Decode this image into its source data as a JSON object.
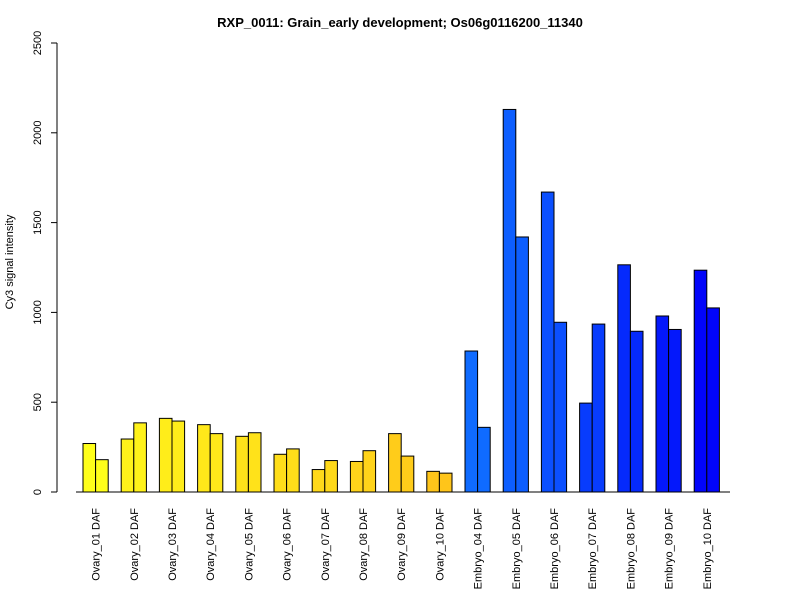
{
  "chart_data": {
    "type": "bar",
    "title": "RXP_0011: Grain_early development; Os06g0116200_11340",
    "ylabel": "Cy3 signal intensity",
    "xlabel": "",
    "ylim": [
      0,
      2500
    ],
    "yticks": [
      0,
      500,
      1000,
      1500,
      2000,
      2500
    ],
    "grid": false,
    "legend": "none",
    "categories": [
      "Ovary_01 DAF",
      "Ovary_02 DAF",
      "Ovary_03 DAF",
      "Ovary_04 DAF",
      "Ovary_05 DAF",
      "Ovary_06 DAF",
      "Ovary_07 DAF",
      "Ovary_08 DAF",
      "Ovary_09 DAF",
      "Ovary_10 DAF",
      "Embryo_04 DAF",
      "Embryo_05 DAF",
      "Embryo_06 DAF",
      "Embryo_07 DAF",
      "Embryo_08 DAF",
      "Embryo_09 DAF",
      "Embryo_10 DAF"
    ],
    "series": [
      {
        "values": [
          270,
          295,
          410,
          375,
          310,
          210,
          125,
          170,
          325,
          115,
          785,
          2130,
          1670,
          495,
          1265,
          980,
          1235
        ]
      },
      {
        "values": [
          180,
          385,
          395,
          325,
          330,
          240,
          175,
          230,
          200,
          105,
          360,
          1420,
          945,
          935,
          895,
          905,
          1025
        ]
      }
    ],
    "colors": [
      "#ffff1a",
      "#fff21a",
      "#ffed1a",
      "#ffe81a",
      "#ffe21a",
      "#ffde1a",
      "#ffd91a",
      "#ffd31a",
      "#ffcc1a",
      "#ffc51a",
      "#0f6bff",
      "#0d5eff",
      "#0b4ffe",
      "#083cfd",
      "#052afc",
      "#0418fb",
      "#0205fa"
    ]
  }
}
